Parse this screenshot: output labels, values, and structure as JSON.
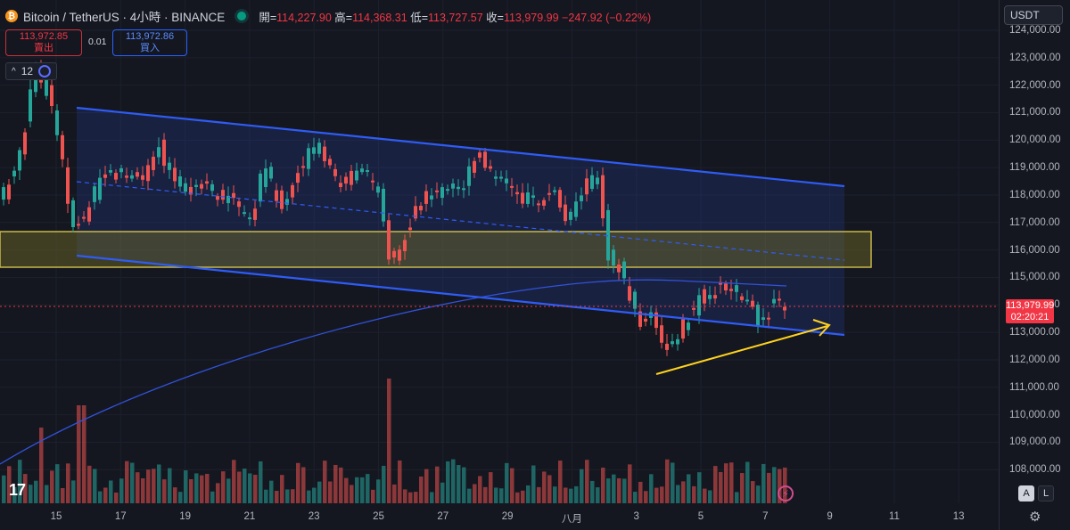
{
  "header": {
    "logo": "₿",
    "title": "Bitcoin / TetherUS · 4小時 · BINANCE",
    "ohlc": {
      "open_label": "開=",
      "open": "114,227.90",
      "high_label": "高=",
      "high": "114,368.31",
      "low_label": "低=",
      "low": "113,727.57",
      "close_label": "收=",
      "close": "113,979.99",
      "change": "−247.92 (−0.22%)"
    }
  },
  "trade": {
    "sell_price": "113,972.85",
    "sell_label": "賣出",
    "spread": "0.01",
    "buy_price": "113,972.86",
    "buy_label": "買入"
  },
  "indicator_toggle": {
    "count": "12",
    "chevron": "^"
  },
  "currency_select": "USDT",
  "price_axis": {
    "ticks": [
      "124,000.00",
      "123,000.00",
      "122,000.00",
      "121,000.00",
      "120,000.00",
      "119,000.00",
      "118,000.00",
      "117,000.00",
      "116,000.00",
      "115,000.00",
      "114,000.00",
      "113,000.00",
      "112,000.00",
      "111,000.00",
      "110,000.00",
      "109,000.00",
      "108,000.00"
    ]
  },
  "last_price": {
    "price": "113,979.99",
    "countdown": "02:20:21"
  },
  "time_axis": {
    "ticks": [
      "15",
      "17",
      "19",
      "21",
      "23",
      "25",
      "27",
      "29",
      "八月",
      "3",
      "5",
      "7",
      "9",
      "11",
      "13"
    ]
  },
  "bottom_controls": {
    "auto": "A",
    "log": "L",
    "settings_icon": "gear-icon",
    "brand": "17"
  },
  "colors": {
    "bull": "#26a69a",
    "bear": "#ef5350",
    "channel": "#2f5cf5",
    "zone": "#c9b84a",
    "arrow": "#ffd21f",
    "ma": "#3152d9"
  }
}
